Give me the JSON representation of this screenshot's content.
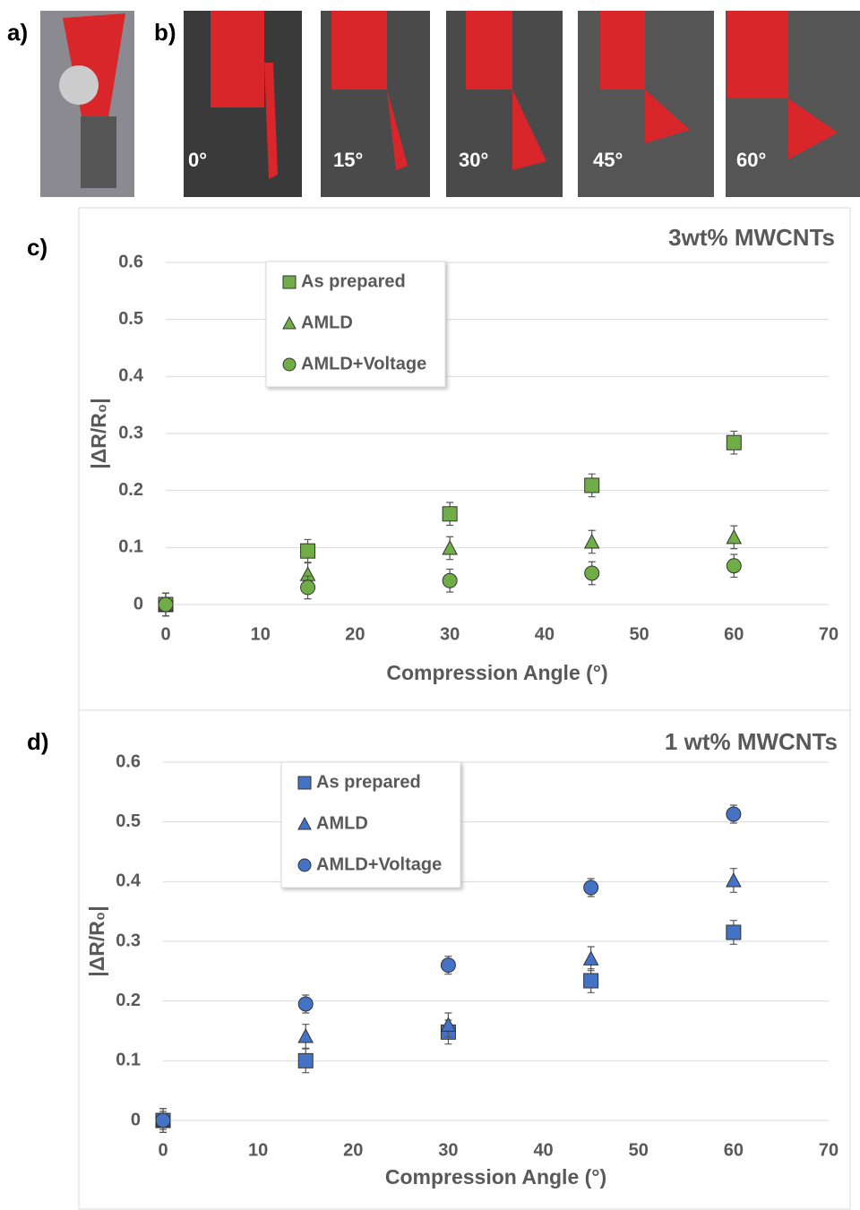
{
  "panel_labels": [
    "a)",
    "b)",
    "c)",
    "d)"
  ],
  "photo_labels": [
    "0°",
    "15°",
    "30°",
    "45°",
    "60°"
  ],
  "chart_data": [
    {
      "type": "scatter",
      "title": "3wt% MWCNTs",
      "x_label": "Compression Angle (°)",
      "y_label": "|ΔR/R₀|",
      "x": [
        0,
        15,
        30,
        45,
        60
      ],
      "xlim": [
        0,
        70
      ],
      "xticks": [
        0,
        10,
        20,
        30,
        40,
        50,
        60,
        70
      ],
      "ylim": [
        0,
        0.6
      ],
      "yticks": [
        0,
        0.1,
        0.2,
        0.3,
        0.4,
        0.5,
        0.6
      ],
      "grid": true,
      "legend": "upper left",
      "series": [
        {
          "name": "As prepared",
          "marker": "square",
          "color": "#70ad47",
          "values": [
            0,
            0.094,
            0.159,
            0.209,
            0.284
          ],
          "errors": [
            0.02,
            0.02,
            0.02,
            0.02,
            0.02
          ]
        },
        {
          "name": "AMLD",
          "marker": "triangle",
          "color": "#70ad47",
          "values": [
            0,
            0.053,
            0.099,
            0.11,
            0.118
          ],
          "errors": [
            0.02,
            0.02,
            0.02,
            0.02,
            0.02
          ]
        },
        {
          "name": "AMLD+Voltage",
          "marker": "circle",
          "color": "#70ad47",
          "values": [
            0,
            0.03,
            0.042,
            0.055,
            0.068
          ],
          "errors": [
            0.02,
            0.02,
            0.02,
            0.02,
            0.02
          ]
        }
      ]
    },
    {
      "type": "scatter",
      "title": "1 wt% MWCNTs",
      "x_label": "Compression Angle (°)",
      "y_label": "|ΔR/R₀|",
      "x": [
        0,
        15,
        30,
        45,
        60
      ],
      "xlim": [
        0,
        70
      ],
      "xticks": [
        0,
        10,
        20,
        30,
        40,
        50,
        60,
        70
      ],
      "ylim": [
        0,
        0.6
      ],
      "yticks": [
        0,
        0.1,
        0.2,
        0.3,
        0.4,
        0.5,
        0.6
      ],
      "grid": true,
      "legend": "upper left",
      "series": [
        {
          "name": "As prepared",
          "marker": "square",
          "color": "#4472c4",
          "values": [
            0,
            0.1,
            0.148,
            0.234,
            0.315
          ],
          "errors": [
            0.02,
            0.02,
            0.02,
            0.02,
            0.02
          ]
        },
        {
          "name": "AMLD",
          "marker": "triangle",
          "color": "#4472c4",
          "values": [
            0,
            0.141,
            0.16,
            0.271,
            0.402
          ],
          "errors": [
            0.02,
            0.02,
            0.02,
            0.02,
            0.02
          ]
        },
        {
          "name": "AMLD+Voltage",
          "marker": "circle",
          "color": "#4472c4",
          "values": [
            0,
            0.195,
            0.26,
            0.39,
            0.513
          ],
          "errors": [
            0.015,
            0.015,
            0.015,
            0.015,
            0.015
          ]
        }
      ]
    }
  ]
}
